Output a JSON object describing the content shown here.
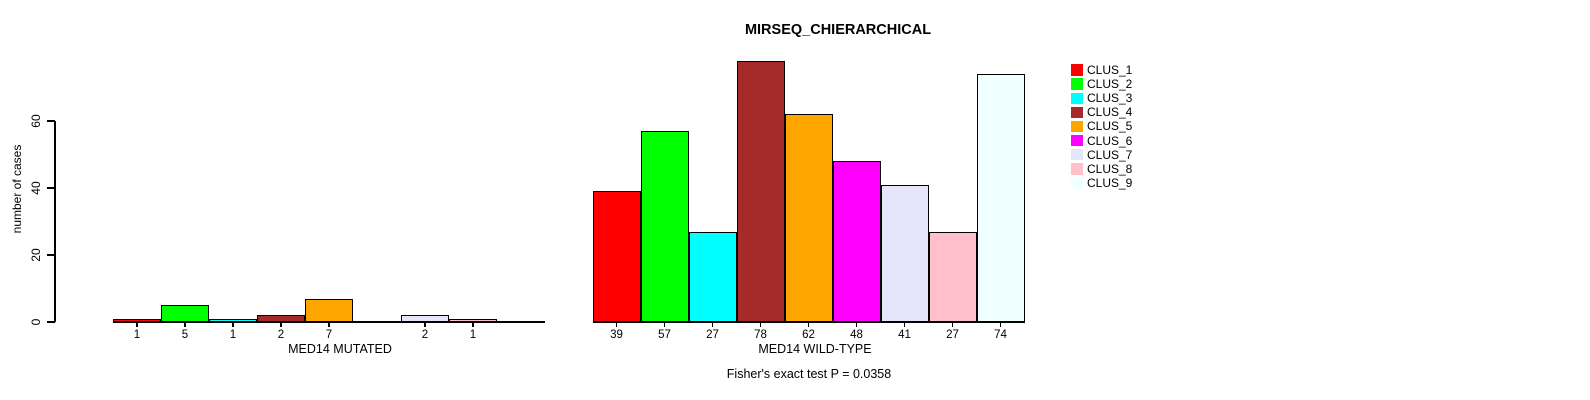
{
  "title": "MIRSEQ_CHIERARCHICAL",
  "y_axis": {
    "label": "number of cases",
    "ticks": [
      0,
      20,
      40,
      60
    ]
  },
  "footnote": "Fisher's exact test P = 0.0358",
  "groups": [
    {
      "label": "MED14 MUTATED",
      "values": [
        1,
        5,
        1,
        2,
        7,
        0,
        2,
        1,
        0
      ],
      "value_labels": [
        "1",
        "5",
        "1",
        "2",
        "7",
        "",
        "2",
        "1",
        ""
      ]
    },
    {
      "label": "MED14 WILD-TYPE",
      "values": [
        39,
        57,
        27,
        78,
        62,
        48,
        41,
        27,
        74
      ],
      "value_labels": [
        "39",
        "57",
        "27",
        "78",
        "62",
        "48",
        "41",
        "27",
        "74"
      ]
    }
  ],
  "legend": {
    "items": [
      {
        "label": "CLUS_1",
        "color": "#FF0000"
      },
      {
        "label": "CLUS_2",
        "color": "#00FF00"
      },
      {
        "label": "CLUS_3",
        "color": "#00FFFF"
      },
      {
        "label": "CLUS_4",
        "color": "#A52A2A"
      },
      {
        "label": "CLUS_5",
        "color": "#FFA500"
      },
      {
        "label": "CLUS_6",
        "color": "#FF00FF"
      },
      {
        "label": "CLUS_7",
        "color": "#E6E6FA"
      },
      {
        "label": "CLUS_8",
        "color": "#FFC0CB"
      },
      {
        "label": "CLUS_9",
        "color": "#F0FFFF"
      }
    ]
  },
  "chart_data": {
    "type": "bar",
    "title": "MIRSEQ_CHIERARCHICAL",
    "xlabel": "",
    "ylabel": "number of cases",
    "categories": [
      "CLUS_1",
      "CLUS_2",
      "CLUS_3",
      "CLUS_4",
      "CLUS_5",
      "CLUS_6",
      "CLUS_7",
      "CLUS_8",
      "CLUS_9"
    ],
    "series": [
      {
        "name": "MED14 MUTATED",
        "values": [
          1,
          5,
          1,
          2,
          7,
          0,
          2,
          1,
          0
        ]
      },
      {
        "name": "MED14 WILD-TYPE",
        "values": [
          39,
          57,
          27,
          78,
          62,
          48,
          41,
          27,
          74
        ]
      }
    ],
    "colors": [
      "#FF0000",
      "#00FF00",
      "#00FFFF",
      "#A52A2A",
      "#FFA500",
      "#FF00FF",
      "#E6E6FA",
      "#FFC0CB",
      "#F0FFFF"
    ],
    "ylim": [
      0,
      78
    ],
    "yticks": [
      0,
      20,
      40,
      60
    ],
    "grid": false,
    "legend_position": "right",
    "annotation": "Fisher's exact test P = 0.0358"
  }
}
